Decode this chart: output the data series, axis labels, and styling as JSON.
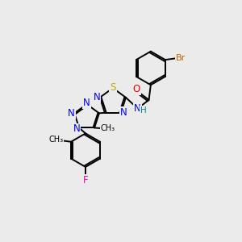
{
  "background_color": "#ebebeb",
  "atom_colors": {
    "C": "#000000",
    "N": "#0000ee",
    "O": "#dd0000",
    "S": "#bbaa00",
    "Br": "#bb6600",
    "F": "#ee00aa",
    "H": "#008888"
  },
  "figsize": [
    3.0,
    3.0
  ],
  "dpi": 100
}
